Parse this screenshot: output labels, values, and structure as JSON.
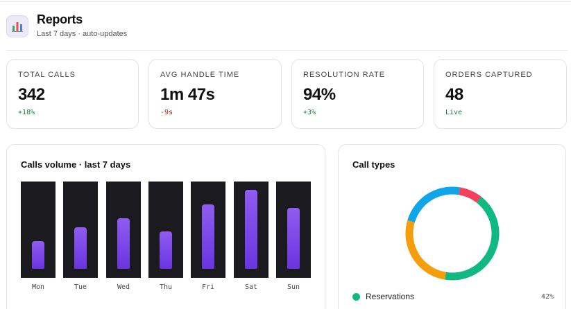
{
  "header": {
    "icon": "bar-chart-icon",
    "title": "Reports",
    "subtitle": "Last 7 days · auto-updates"
  },
  "stats": [
    {
      "label": "TOTAL CALLS",
      "value": "342",
      "delta": "+18%",
      "trend": "positive"
    },
    {
      "label": "AVG HANDLE TIME",
      "value": "1m 47s",
      "delta": "-9s",
      "trend": "negative"
    },
    {
      "label": "RESOLUTION RATE",
      "value": "94%",
      "delta": "+3%",
      "trend": "positive"
    },
    {
      "label": "ORDERS CAPTURED",
      "value": "48",
      "delta": "Live",
      "trend": "positive"
    }
  ],
  "calls_volume": {
    "title": "Calls volume · last 7 days",
    "chart_data": {
      "type": "bar",
      "categories": [
        "Mon",
        "Tue",
        "Wed",
        "Thu",
        "Fri",
        "Sat",
        "Sun"
      ],
      "values": [
        0.35,
        0.53,
        0.64,
        0.47,
        0.82,
        1.0,
        0.77
      ],
      "bar_color": "#7c45e8",
      "track_color": "#1b1b1f"
    }
  },
  "call_types": {
    "title": "Call types",
    "chart_data": {
      "type": "pie",
      "style": "donut",
      "slices": [
        {
          "label": "Reservations",
          "value": 42,
          "color": "#10b981"
        },
        {
          "value": 27,
          "color": "#f59e0b"
        },
        {
          "value": 23,
          "color": "#0ea5e9"
        },
        {
          "value": 8,
          "color": "#f43f5e"
        }
      ]
    },
    "legend": [
      {
        "label": "Reservations",
        "pct": "42%",
        "color": "#10b981"
      }
    ]
  },
  "colors": {
    "accent": "#7c45e8",
    "positive": "#16803c",
    "negative": "#b42318"
  }
}
